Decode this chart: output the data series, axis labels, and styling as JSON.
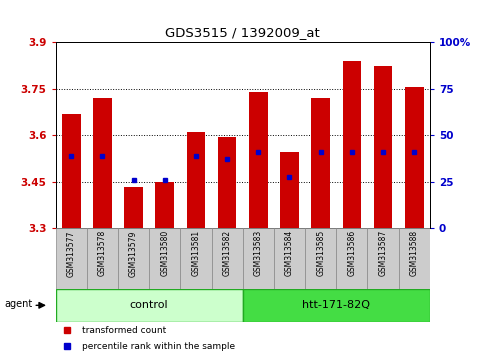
{
  "title": "GDS3515 / 1392009_at",
  "samples": [
    "GSM313577",
    "GSM313578",
    "GSM313579",
    "GSM313580",
    "GSM313581",
    "GSM313582",
    "GSM313583",
    "GSM313584",
    "GSM313585",
    "GSM313586",
    "GSM313587",
    "GSM313588"
  ],
  "bar_values": [
    3.67,
    3.72,
    3.435,
    3.45,
    3.61,
    3.595,
    3.74,
    3.545,
    3.72,
    3.84,
    3.825,
    3.755
  ],
  "percentile_values": [
    3.535,
    3.535,
    3.455,
    3.457,
    3.535,
    3.525,
    3.545,
    3.465,
    3.545,
    3.545,
    3.545,
    3.545
  ],
  "bar_color": "#cc0000",
  "percentile_color": "#0000cc",
  "ymin": 3.3,
  "ymax": 3.9,
  "yticks": [
    3.3,
    3.45,
    3.6,
    3.75,
    3.9
  ],
  "ytick_labels": [
    "3.3",
    "3.45",
    "3.6",
    "3.75",
    "3.9"
  ],
  "right_yticks": [
    0,
    25,
    50,
    75,
    100
  ],
  "right_ytick_labels": [
    "0",
    "25",
    "50",
    "75",
    "100%"
  ],
  "tick_label_color_left": "#cc0000",
  "tick_label_color_right": "#0000cc",
  "legend_items": [
    {
      "color": "#cc0000",
      "label": "transformed count"
    },
    {
      "color": "#0000cc",
      "label": "percentile rank within the sample"
    }
  ],
  "ctrl_color": "#ccffcc",
  "htt_color": "#44dd44",
  "group_edge_color": "#22aa22"
}
